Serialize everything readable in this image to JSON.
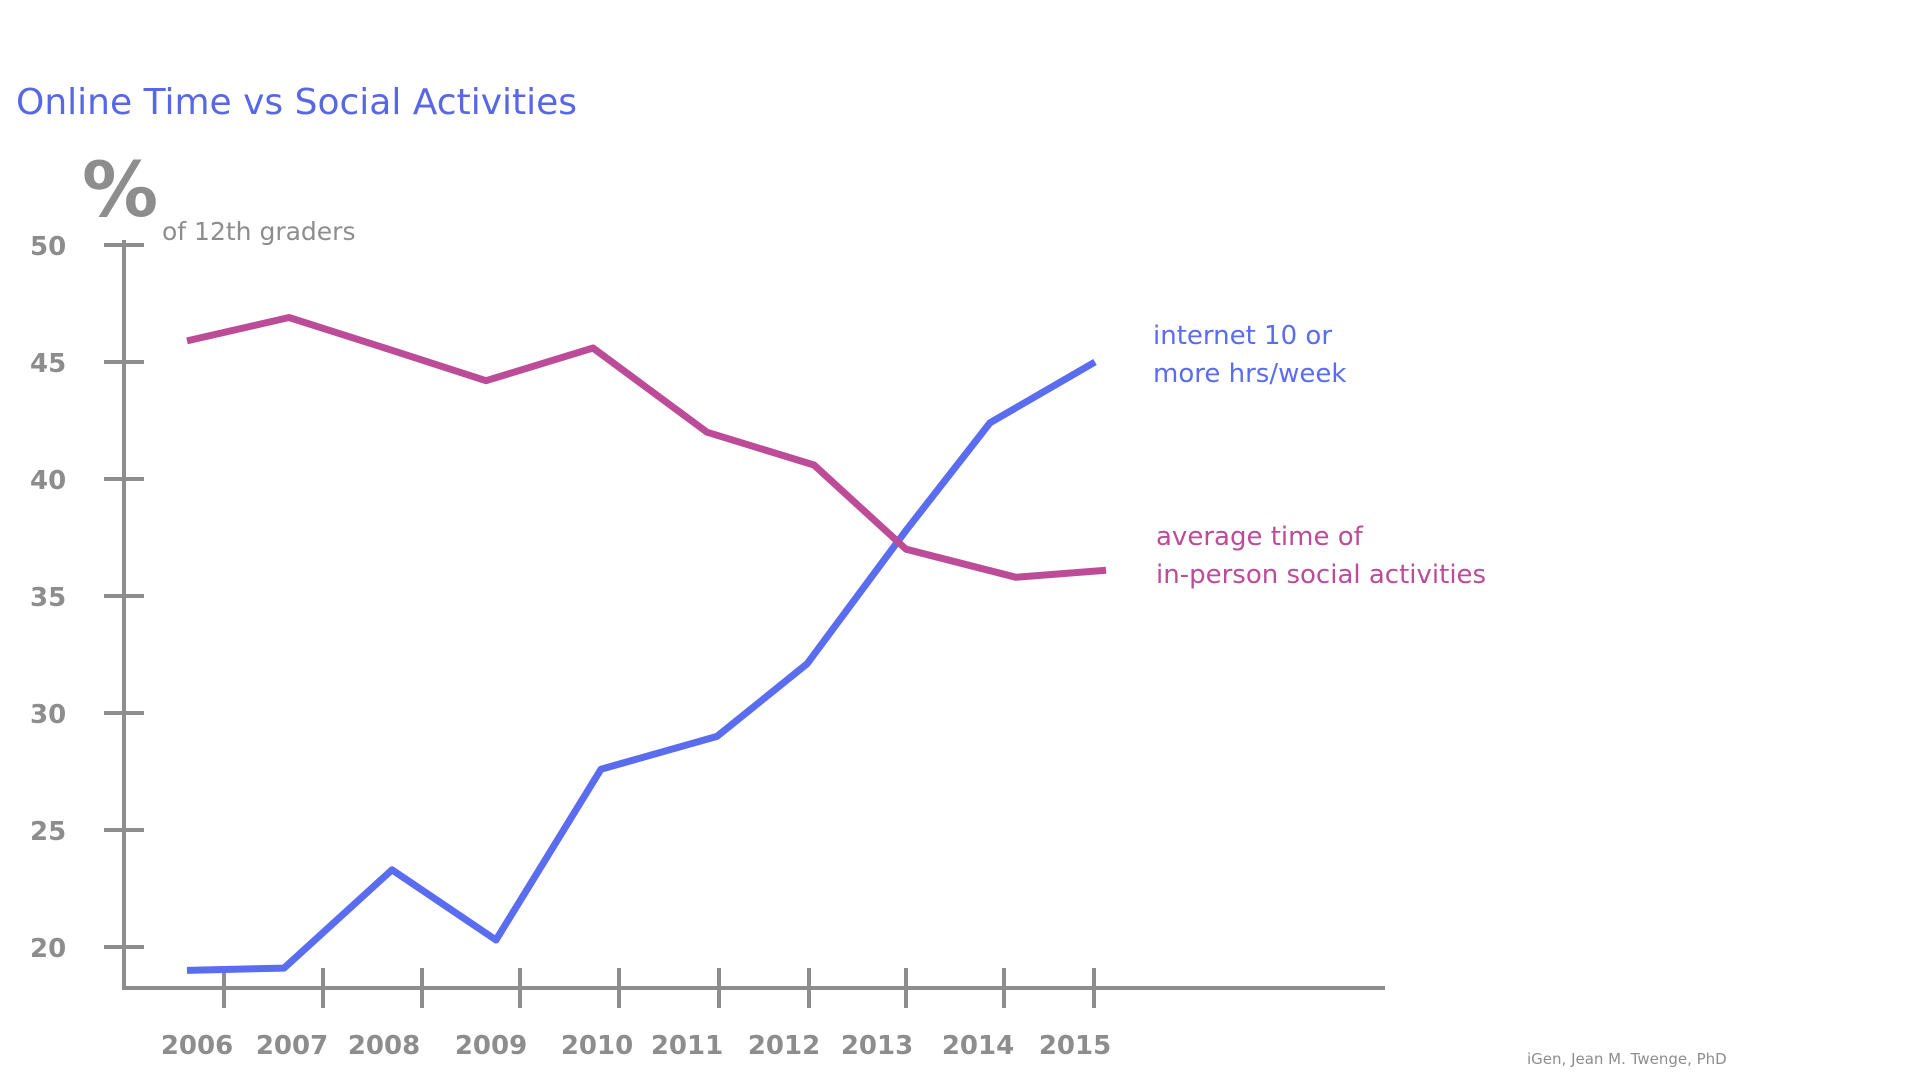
{
  "chart_data": {
    "type": "line",
    "title": "Online Time vs Social Activities",
    "ylabel_symbol": "%",
    "ylabel": "of 12th graders",
    "x": [
      "2006",
      "2007",
      "2008",
      "2009",
      "2010",
      "2011",
      "2012",
      "2013",
      "2014",
      "2015"
    ],
    "y_ticks": [
      50,
      45,
      40,
      35,
      30,
      25,
      20
    ],
    "grid": false,
    "legend": "inline labels at right end of lines",
    "series": [
      {
        "name_lines": [
          "internet 10 or",
          "more hrs/week"
        ],
        "color": "#5a6cf0",
        "values": [
          19.0,
          19.1,
          23.3,
          20.3,
          27.6,
          29.0,
          32.1,
          37.8,
          42.4,
          45.0
        ]
      },
      {
        "name_lines": [
          "average time of",
          "in-person social activities"
        ],
        "color": "#bd4c98",
        "values": [
          45.9,
          46.9,
          45.5,
          44.2,
          45.6,
          42.0,
          40.6,
          37.0,
          35.8,
          36.1
        ]
      }
    ],
    "source": "iGen, Jean M. Twenge, PhD"
  }
}
